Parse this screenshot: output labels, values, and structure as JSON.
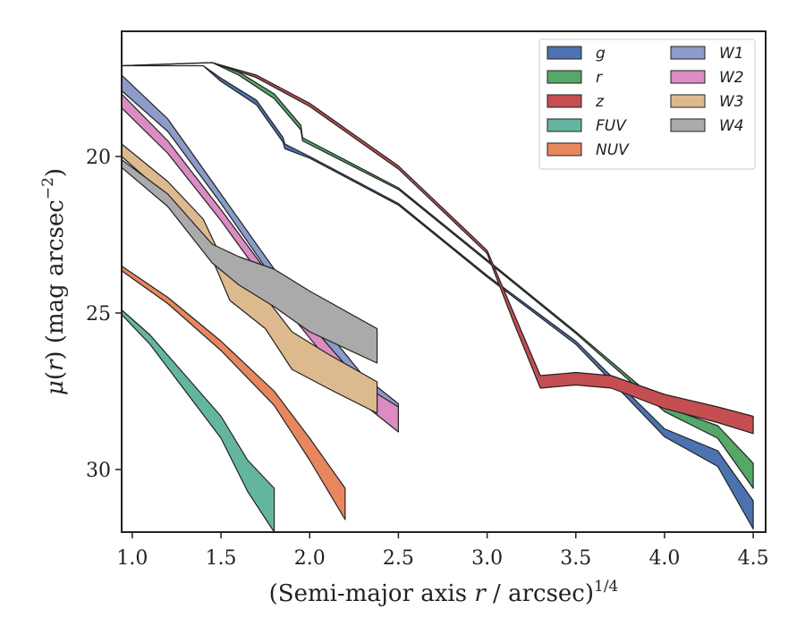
{
  "chart_data": {
    "type": "area",
    "xlabel_parts": {
      "pre": "(Semi-major axis ",
      "var": "r",
      "post": " / arcsec)",
      "exp": "1/4"
    },
    "ylabel_parts": {
      "mu": "μ",
      "paren_open": "(",
      "var": "r",
      "paren_close": ")",
      "rest": " (mag arcsec",
      "exp": "−2",
      "end": ")"
    },
    "xlim": [
      0.94,
      4.57
    ],
    "ylim": [
      32.0,
      16.0
    ],
    "y_inverted": true,
    "xticks": [
      1.0,
      1.5,
      2.0,
      2.5,
      3.0,
      3.5,
      4.0,
      4.5
    ],
    "xtick_labels": [
      "1.0",
      "1.5",
      "2.0",
      "2.5",
      "3.0",
      "3.5",
      "4.0",
      "4.5"
    ],
    "yticks": [
      20,
      25,
      30
    ],
    "ytick_labels": [
      "20",
      "25",
      "30"
    ],
    "legend_position": "top-right",
    "legend_columns": 2,
    "series": [
      {
        "name": "g",
        "color": "#4C72B0",
        "points": [
          [
            0.94,
            17.1
          ],
          [
            1.4,
            17.1
          ],
          [
            1.5,
            17.5
          ],
          [
            1.7,
            18.2
          ],
          [
            1.85,
            19.4
          ],
          [
            1.86,
            19.6
          ],
          [
            2.0,
            20.0
          ],
          [
            2.5,
            21.5
          ],
          [
            3.0,
            23.8
          ],
          [
            3.5,
            25.9
          ],
          [
            4.0,
            28.7
          ],
          [
            4.3,
            29.4
          ],
          [
            4.5,
            31.0
          ]
        ],
        "width": [
          0,
          0,
          0.1,
          0.15,
          0.15,
          0.15,
          0.05,
          0.05,
          0.05,
          0.1,
          0.25,
          0.5,
          0.9
        ]
      },
      {
        "name": "r",
        "color": "#55A868",
        "points": [
          [
            0.94,
            17.1
          ],
          [
            1.45,
            17.0
          ],
          [
            1.6,
            17.3
          ],
          [
            1.8,
            18.0
          ],
          [
            1.95,
            19.0
          ],
          [
            1.96,
            19.4
          ],
          [
            2.5,
            21.0
          ],
          [
            3.0,
            23.3
          ],
          [
            3.5,
            25.6
          ],
          [
            4.0,
            28.0
          ],
          [
            4.3,
            28.6
          ],
          [
            4.5,
            29.8
          ]
        ],
        "width": [
          0,
          0,
          0.1,
          0.15,
          0.15,
          0.1,
          0.05,
          0.05,
          0.05,
          0.15,
          0.4,
          0.8
        ]
      },
      {
        "name": "z",
        "color": "#C44E52",
        "points": [
          [
            0.94,
            17.1
          ],
          [
            1.45,
            17.0
          ],
          [
            1.7,
            17.4
          ],
          [
            2.0,
            18.3
          ],
          [
            2.5,
            20.3
          ],
          [
            3.0,
            23.0
          ],
          [
            3.15,
            25.0
          ],
          [
            3.3,
            27.0
          ],
          [
            3.5,
            26.9
          ],
          [
            3.7,
            27.0
          ],
          [
            4.0,
            27.6
          ],
          [
            4.3,
            28.0
          ],
          [
            4.5,
            28.3
          ]
        ],
        "width": [
          0,
          0,
          0.08,
          0.1,
          0.1,
          0.1,
          0.3,
          0.4,
          0.4,
          0.4,
          0.45,
          0.5,
          0.55
        ]
      },
      {
        "name": "FUV",
        "color": "#64B5A0",
        "points": [
          [
            0.94,
            24.9
          ],
          [
            1.1,
            25.7
          ],
          [
            1.3,
            27.0
          ],
          [
            1.5,
            28.3
          ],
          [
            1.65,
            29.7
          ],
          [
            1.8,
            30.6
          ]
        ],
        "width": [
          0.15,
          0.3,
          0.5,
          0.7,
          1.0,
          1.4
        ]
      },
      {
        "name": "NUV",
        "color": "#E8875F",
        "points": [
          [
            0.94,
            23.5
          ],
          [
            1.2,
            24.5
          ],
          [
            1.5,
            25.9
          ],
          [
            1.8,
            27.5
          ],
          [
            2.0,
            29.0
          ],
          [
            2.2,
            30.6
          ]
        ],
        "width": [
          0.15,
          0.2,
          0.3,
          0.45,
          0.7,
          1.0
        ]
      },
      {
        "name": "W1",
        "color": "#8C9BC9",
        "points": [
          [
            0.94,
            17.4
          ],
          [
            1.2,
            18.8
          ],
          [
            1.5,
            21.2
          ],
          [
            1.8,
            23.6
          ],
          [
            2.1,
            25.6
          ],
          [
            2.3,
            27.0
          ],
          [
            2.5,
            27.9
          ]
        ],
        "width": [
          0.5,
          0.4,
          0.3,
          0.35,
          0.45,
          0.55,
          0.8
        ]
      },
      {
        "name": "W2",
        "color": "#DB8CC2",
        "points": [
          [
            0.94,
            18.0
          ],
          [
            1.2,
            19.5
          ],
          [
            1.5,
            21.7
          ],
          [
            1.8,
            24.0
          ],
          [
            2.1,
            26.0
          ],
          [
            2.3,
            27.3
          ],
          [
            2.5,
            28.0
          ]
        ],
        "width": [
          0.45,
          0.4,
          0.35,
          0.4,
          0.5,
          0.6,
          0.8
        ]
      },
      {
        "name": "W3",
        "color": "#DDBA8E",
        "points": [
          [
            0.94,
            19.6
          ],
          [
            1.2,
            20.8
          ],
          [
            1.4,
            22.0
          ],
          [
            1.55,
            23.8
          ],
          [
            1.75,
            24.5
          ],
          [
            1.9,
            25.6
          ],
          [
            2.1,
            26.3
          ],
          [
            2.38,
            27.2
          ]
        ],
        "width": [
          0.4,
          0.5,
          0.6,
          0.8,
          1.0,
          1.2,
          1.1,
          1.0
        ]
      },
      {
        "name": "W4",
        "color": "#AAAAAA",
        "points": [
          [
            0.94,
            20.1
          ],
          [
            1.2,
            21.2
          ],
          [
            1.45,
            22.8
          ],
          [
            1.6,
            23.2
          ],
          [
            1.8,
            23.6
          ],
          [
            2.0,
            24.3
          ],
          [
            2.38,
            25.5
          ]
        ],
        "width": [
          0.25,
          0.4,
          0.6,
          0.9,
          1.2,
          1.3,
          1.1
        ]
      }
    ],
    "legend": [
      {
        "label": "g",
        "color": "#4C72B0"
      },
      {
        "label": "r",
        "color": "#55A868"
      },
      {
        "label": "z",
        "color": "#C44E52"
      },
      {
        "label": "FUV",
        "color": "#64B5A0"
      },
      {
        "label": "NUV",
        "color": "#E8875F"
      },
      {
        "label": "W1",
        "color": "#8C9BC9"
      },
      {
        "label": "W2",
        "color": "#DB8CC2"
      },
      {
        "label": "W3",
        "color": "#DDBA8E"
      },
      {
        "label": "W4",
        "color": "#AAAAAA"
      }
    ]
  }
}
